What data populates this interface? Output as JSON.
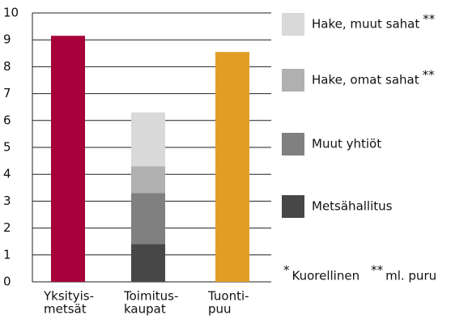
{
  "chart_data": {
    "type": "stacked-bar",
    "categories": [
      [
        "Yksityis-",
        "metsät"
      ],
      [
        "Toimitus-",
        "kaupat"
      ],
      [
        "Tuonti-",
        "puu"
      ]
    ],
    "values": [
      9.15,
      null,
      8.55
    ],
    "colors": [
      "#a6003a",
      null,
      "#e19e27"
    ],
    "series": [
      {
        "name": "Metsähallitus",
        "color": "#474747",
        "values": [
          null,
          1.4,
          null
        ]
      },
      {
        "name": "Muut yhtiöt",
        "color": "#808080",
        "values": [
          null,
          1.9,
          null
        ]
      },
      {
        "name": "Hake, omat sahat",
        "note": "**",
        "color": "#b0b0b0",
        "values": [
          null,
          1.0,
          null
        ]
      },
      {
        "name": "Hake, muut sahat",
        "note": "**",
        "color": "#d9d9d9",
        "values": [
          null,
          2.0,
          null
        ]
      }
    ],
    "ylim": [
      0,
      10
    ],
    "yticks": [
      0,
      1,
      2,
      3,
      4,
      5,
      6,
      7,
      8,
      9,
      10
    ],
    "grid": true,
    "footnotes": [
      {
        "mark": "*",
        "text": "Kuorellinen"
      },
      {
        "mark": "**",
        "text": "ml. puru"
      }
    ]
  }
}
